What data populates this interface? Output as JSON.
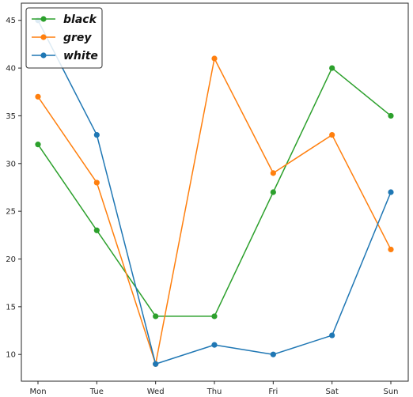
{
  "chart_data": {
    "type": "line",
    "categories": [
      "Mon",
      "Tue",
      "Wed",
      "Thu",
      "Fri",
      "Sat",
      "Sun"
    ],
    "series": [
      {
        "name": "black",
        "color": "#2ca02c",
        "values": [
          32,
          23,
          14,
          14,
          27,
          40,
          35
        ]
      },
      {
        "name": "grey",
        "color": "#ff7f0e",
        "values": [
          37,
          28,
          9,
          41,
          29,
          33,
          21
        ]
      },
      {
        "name": "white",
        "color": "#1f77b4",
        "values": [
          45,
          33,
          9,
          11,
          10,
          12,
          27
        ]
      }
    ],
    "yticks": [
      10,
      15,
      20,
      25,
      30,
      35,
      40,
      45
    ],
    "ylim": [
      7.2,
      46.8
    ],
    "grid": false,
    "legend": "top-left",
    "markers": "circle"
  }
}
